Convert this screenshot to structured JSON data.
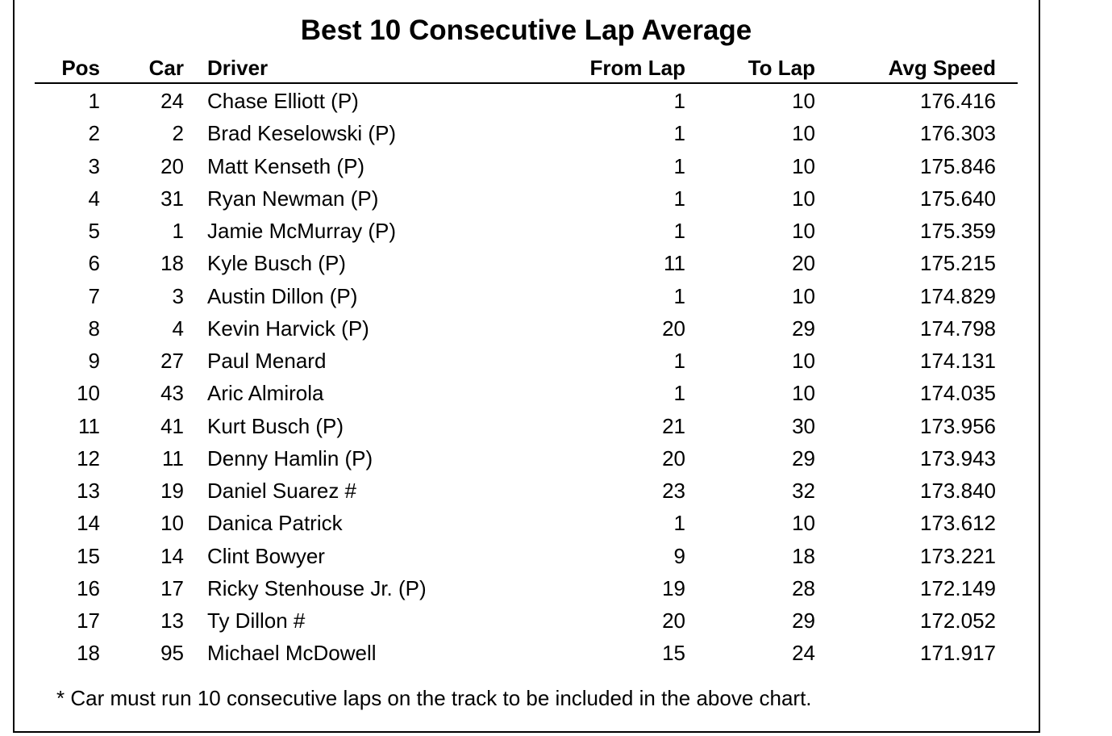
{
  "title": "Best 10 Consecutive Lap Average",
  "columns": {
    "pos": "Pos",
    "car": "Car",
    "driver": "Driver",
    "from_lap": "From Lap",
    "to_lap": "To Lap",
    "avg_speed": "Avg Speed"
  },
  "rows": [
    {
      "pos": "1",
      "car": "24",
      "driver": "Chase Elliott (P)",
      "from_lap": "1",
      "to_lap": "10",
      "avg_speed": "176.416"
    },
    {
      "pos": "2",
      "car": "2",
      "driver": "Brad Keselowski (P)",
      "from_lap": "1",
      "to_lap": "10",
      "avg_speed": "176.303"
    },
    {
      "pos": "3",
      "car": "20",
      "driver": "Matt Kenseth (P)",
      "from_lap": "1",
      "to_lap": "10",
      "avg_speed": "175.846"
    },
    {
      "pos": "4",
      "car": "31",
      "driver": "Ryan Newman (P)",
      "from_lap": "1",
      "to_lap": "10",
      "avg_speed": "175.640"
    },
    {
      "pos": "5",
      "car": "1",
      "driver": "Jamie McMurray (P)",
      "from_lap": "1",
      "to_lap": "10",
      "avg_speed": "175.359"
    },
    {
      "pos": "6",
      "car": "18",
      "driver": "Kyle Busch (P)",
      "from_lap": "11",
      "to_lap": "20",
      "avg_speed": "175.215"
    },
    {
      "pos": "7",
      "car": "3",
      "driver": "Austin Dillon (P)",
      "from_lap": "1",
      "to_lap": "10",
      "avg_speed": "174.829"
    },
    {
      "pos": "8",
      "car": "4",
      "driver": "Kevin Harvick (P)",
      "from_lap": "20",
      "to_lap": "29",
      "avg_speed": "174.798"
    },
    {
      "pos": "9",
      "car": "27",
      "driver": "Paul Menard",
      "from_lap": "1",
      "to_lap": "10",
      "avg_speed": "174.131"
    },
    {
      "pos": "10",
      "car": "43",
      "driver": "Aric Almirola",
      "from_lap": "1",
      "to_lap": "10",
      "avg_speed": "174.035"
    },
    {
      "pos": "11",
      "car": "41",
      "driver": "Kurt Busch (P)",
      "from_lap": "21",
      "to_lap": "30",
      "avg_speed": "173.956"
    },
    {
      "pos": "12",
      "car": "11",
      "driver": "Denny Hamlin (P)",
      "from_lap": "20",
      "to_lap": "29",
      "avg_speed": "173.943"
    },
    {
      "pos": "13",
      "car": "19",
      "driver": "Daniel Suarez #",
      "from_lap": "23",
      "to_lap": "32",
      "avg_speed": "173.840"
    },
    {
      "pos": "14",
      "car": "10",
      "driver": "Danica Patrick",
      "from_lap": "1",
      "to_lap": "10",
      "avg_speed": "173.612"
    },
    {
      "pos": "15",
      "car": "14",
      "driver": "Clint Bowyer",
      "from_lap": "9",
      "to_lap": "18",
      "avg_speed": "173.221"
    },
    {
      "pos": "16",
      "car": "17",
      "driver": "Ricky Stenhouse Jr. (P)",
      "from_lap": "19",
      "to_lap": "28",
      "avg_speed": "172.149"
    },
    {
      "pos": "17",
      "car": "13",
      "driver": "Ty Dillon #",
      "from_lap": "20",
      "to_lap": "29",
      "avg_speed": "172.052"
    },
    {
      "pos": "18",
      "car": "95",
      "driver": "Michael McDowell",
      "from_lap": "15",
      "to_lap": "24",
      "avg_speed": "171.917"
    }
  ],
  "footnote": "* Car must run 10 consecutive laps on the track to be included in the above chart."
}
